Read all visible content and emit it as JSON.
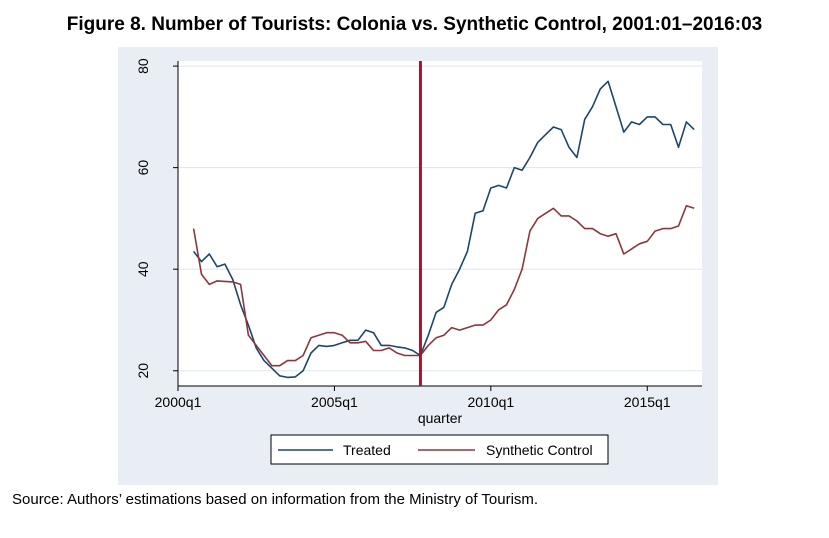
{
  "figure": {
    "title": "Figure 8. Number of Tourists: Colonia vs. Synthetic Control, 2001:01–2016:03",
    "source": "Source: Authors’ estimations based on information from the Ministry of Tourism."
  },
  "colors": {
    "panel_background": "#e8eef3",
    "treated": "#1a476f",
    "synthetic": "#90353b",
    "intervention_line": "#b01030",
    "grid": "#ffffff"
  },
  "chart_data": {
    "type": "line",
    "title": "",
    "xlabel": "quarter",
    "ylabel": "",
    "xlim": [
      2000.0,
      2016.75
    ],
    "ylim": [
      17,
      81
    ],
    "x_ticks": [
      {
        "value": 2000.0,
        "label": "2000q1"
      },
      {
        "value": 2005.0,
        "label": "2005q1"
      },
      {
        "value": 2010.0,
        "label": "2010q1"
      },
      {
        "value": 2015.0,
        "label": "2015q1"
      }
    ],
    "y_ticks": [
      {
        "value": 20,
        "label": "20"
      },
      {
        "value": 40,
        "label": "40"
      },
      {
        "value": 60,
        "label": "60"
      },
      {
        "value": 80,
        "label": "80"
      }
    ],
    "grid": "horizontal",
    "legend_position": "bottom",
    "intervention_x": 2007.75,
    "x": [
      2000.5,
      2000.75,
      2001.0,
      2001.25,
      2001.5,
      2001.75,
      2002.0,
      2002.25,
      2002.5,
      2002.75,
      2003.0,
      2003.25,
      2003.5,
      2003.75,
      2004.0,
      2004.25,
      2004.5,
      2004.75,
      2005.0,
      2005.25,
      2005.5,
      2005.75,
      2006.0,
      2006.25,
      2006.5,
      2006.75,
      2007.0,
      2007.25,
      2007.5,
      2007.75,
      2008.0,
      2008.25,
      2008.5,
      2008.75,
      2009.0,
      2009.25,
      2009.5,
      2009.75,
      2010.0,
      2010.25,
      2010.5,
      2010.75,
      2011.0,
      2011.25,
      2011.5,
      2011.75,
      2012.0,
      2012.25,
      2012.5,
      2012.75,
      2013.0,
      2013.25,
      2013.5,
      2013.75,
      2014.0,
      2014.25,
      2014.5,
      2014.75,
      2015.0,
      2015.25,
      2015.5,
      2015.75,
      2016.0,
      2016.25,
      2016.5
    ],
    "series": [
      {
        "name": "Treated",
        "values": [
          43.5,
          41.5,
          43.0,
          40.5,
          41.0,
          38.0,
          33.0,
          29.0,
          24.5,
          22.0,
          20.5,
          19.0,
          18.7,
          18.8,
          20.0,
          23.5,
          25.0,
          24.8,
          25.0,
          25.5,
          26.0,
          26.0,
          28.0,
          27.5,
          25.0,
          25.0,
          24.7,
          24.5,
          24.0,
          23.0,
          27.0,
          31.5,
          32.5,
          37.0,
          40.0,
          43.5,
          51.0,
          51.5,
          56.0,
          56.5,
          56.0,
          60.0,
          59.5,
          62.0,
          65.0,
          66.5,
          68.0,
          67.5,
          64.0,
          62.0,
          69.5,
          72.0,
          75.5,
          77.0,
          72.0,
          67.0,
          69.0,
          68.5,
          70.0,
          70.0,
          68.5,
          68.5,
          64.0,
          69.0,
          67.5
        ]
      },
      {
        "name": "Synthetic Control",
        "values": [
          48.0,
          39.0,
          37.0,
          37.7,
          37.6,
          37.5,
          37.0,
          27.0,
          25.0,
          23.0,
          21.0,
          21.0,
          22.0,
          22.0,
          23.0,
          26.5,
          27.0,
          27.5,
          27.5,
          27.0,
          25.5,
          25.5,
          25.8,
          24.0,
          24.0,
          24.5,
          23.5,
          23.0,
          23.0,
          23.0,
          25.0,
          26.5,
          27.0,
          28.5,
          28.0,
          28.5,
          29.0,
          29.0,
          30.0,
          32.0,
          33.0,
          36.0,
          40.0,
          47.5,
          50.0,
          51.0,
          52.0,
          50.5,
          50.5,
          49.5,
          48.0,
          48.0,
          47.0,
          46.5,
          47.0,
          43.0,
          44.0,
          45.0,
          45.5,
          47.5,
          48.0,
          48.0,
          48.5,
          52.5,
          52.0
        ]
      }
    ]
  }
}
